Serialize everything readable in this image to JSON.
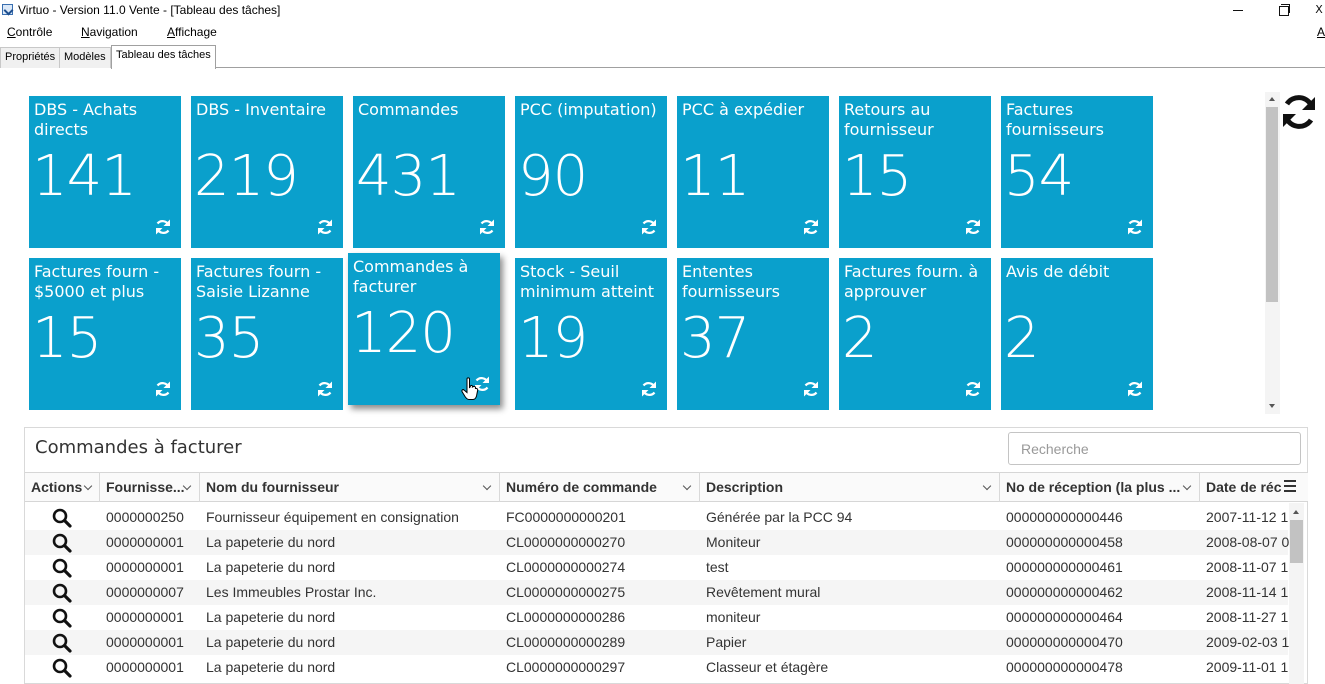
{
  "window": {
    "title": "Virtuo - Version 11.0 Vente - [Tableau des tâches]",
    "close_glyph": "X"
  },
  "menu": {
    "items": [
      {
        "first": "C",
        "rest": "ontrôle"
      },
      {
        "first": "N",
        "rest": "avigation"
      },
      {
        "first": "A",
        "rest": "ffichage"
      }
    ],
    "right": "A"
  },
  "tabs": [
    "Propriétés",
    "Modèles",
    "Tableau des tâches"
  ],
  "active_tab": "Tableau des tâches",
  "tiles": [
    {
      "title": "DBS - Achats directs",
      "count": "141"
    },
    {
      "title": "DBS - Inventaire",
      "count": "219"
    },
    {
      "title": "Commandes",
      "count": "431"
    },
    {
      "title": "PCC (imputation)",
      "count": "90"
    },
    {
      "title": "PCC à expédier",
      "count": "11"
    },
    {
      "title": "Retours au fournisseur",
      "count": "15"
    },
    {
      "title": "Factures fournisseurs",
      "count": "54"
    },
    {
      "title": "Factures fourn - $5000 et plus",
      "count": "15"
    },
    {
      "title": "Factures fourn - Saisie Lizanne",
      "count": "35"
    },
    {
      "title": "Commandes à facturer",
      "count": "120"
    },
    {
      "title": "Stock - Seuil minimum atteint",
      "count": "19"
    },
    {
      "title": "Ententes fournisseurs",
      "count": "37"
    },
    {
      "title": "Factures fourn. à approuver",
      "count": "2"
    },
    {
      "title": "Avis de débit",
      "count": "2"
    }
  ],
  "tile_color": "#0aa0cc",
  "panel": {
    "title": "Commandes à facturer",
    "search_placeholder": "Recherche"
  },
  "columns": [
    "Actions",
    "Fournisse...",
    "Nom du fournisseur",
    "Numéro de commande",
    "Description",
    "No de réception (la plus ...",
    "Date de réc"
  ],
  "rows": [
    {
      "fournisseur": "0000000250",
      "nom": "Fournisseur équipement en consignation",
      "commande": "FC0000000000201",
      "description": "Générée par la PCC 94",
      "reception": "000000000000446",
      "date": "2007-11-12 1"
    },
    {
      "fournisseur": "0000000001",
      "nom": "La papeterie du nord",
      "commande": "CL0000000000270",
      "description": "Moniteur",
      "reception": "000000000000458",
      "date": "2008-08-07 0"
    },
    {
      "fournisseur": "0000000001",
      "nom": "La papeterie du nord",
      "commande": "CL0000000000274",
      "description": "test",
      "reception": "000000000000461",
      "date": "2008-11-07 1"
    },
    {
      "fournisseur": "0000000007",
      "nom": "Les Immeubles Prostar Inc.",
      "commande": "CL0000000000275",
      "description": "Revêtement mural",
      "reception": "000000000000462",
      "date": "2008-11-14 1"
    },
    {
      "fournisseur": "0000000001",
      "nom": "La papeterie du nord",
      "commande": "CL0000000000286",
      "description": "moniteur",
      "reception": "000000000000464",
      "date": "2008-11-27 1"
    },
    {
      "fournisseur": "0000000001",
      "nom": "La papeterie du nord",
      "commande": "CL0000000000289",
      "description": "Papier",
      "reception": "000000000000470",
      "date": "2009-02-03 1"
    },
    {
      "fournisseur": "0000000001",
      "nom": "La papeterie du nord",
      "commande": "CL0000000000297",
      "description": "Classeur et étagère",
      "reception": "000000000000478",
      "date": "2009-11-01 1"
    }
  ],
  "icons": {
    "tile_refresh": "refresh-icon",
    "dashboard_refresh": "refresh-icon",
    "row_action": "magnifier-icon",
    "column_menu": "hamburger-menu-icon"
  }
}
